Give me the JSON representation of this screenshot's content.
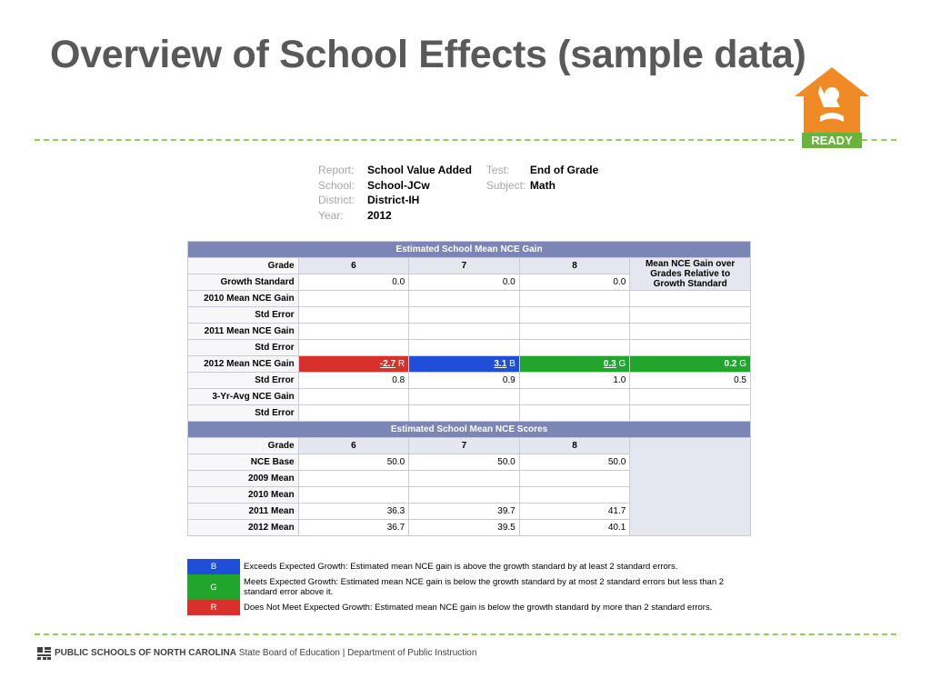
{
  "slide": {
    "title": "Overview of School Effects (sample data)",
    "logo_text": "READY"
  },
  "meta": {
    "report_label": "Report:",
    "report": "School Value Added",
    "test_label": "Test:",
    "test": "End of Grade",
    "school_label": "School:",
    "school": "School-JCw",
    "subject_label": "Subject:",
    "subject": "Math",
    "district_label": "District:",
    "district": "District-IH",
    "year_label": "Year:",
    "year": "2012"
  },
  "gain_table": {
    "section_title": "Estimated School Mean NCE Gain",
    "grade_label": "Grade",
    "grades": [
      "6",
      "7",
      "8"
    ],
    "summary_header": "Mean NCE Gain over Grades Relative to Growth Standard",
    "rows": [
      {
        "label": "Growth Standard",
        "values": [
          "0.0",
          "0.0",
          "0.0"
        ],
        "summary": ""
      },
      {
        "label": "2010 Mean NCE Gain",
        "values": [
          "",
          "",
          ""
        ],
        "summary": ""
      },
      {
        "label": "Std Error",
        "values": [
          "",
          "",
          ""
        ],
        "summary": ""
      },
      {
        "label": "2011 Mean NCE Gain",
        "values": [
          "",
          "",
          ""
        ],
        "summary": ""
      },
      {
        "label": "Std Error",
        "values": [
          "",
          "",
          ""
        ],
        "summary": ""
      },
      {
        "label": "2012 Mean NCE Gain",
        "values": [
          "-2.7",
          "3.1",
          "0.3"
        ],
        "codes": [
          "R",
          "B",
          "G"
        ],
        "summary": "0.2",
        "summary_code": "G"
      },
      {
        "label": "Std Error",
        "values": [
          "0.8",
          "0.9",
          "1.0"
        ],
        "summary": "0.5"
      },
      {
        "label": "3-Yr-Avg NCE Gain",
        "values": [
          "",
          "",
          ""
        ],
        "summary": ""
      },
      {
        "label": "Std Error",
        "values": [
          "",
          "",
          ""
        ],
        "summary": ""
      }
    ]
  },
  "score_table": {
    "section_title": "Estimated School Mean NCE Scores",
    "grade_label": "Grade",
    "grades": [
      "6",
      "7",
      "8"
    ],
    "rows": [
      {
        "label": "NCE Base",
        "values": [
          "50.0",
          "50.0",
          "50.0"
        ]
      },
      {
        "label": "2009 Mean",
        "values": [
          "",
          "",
          ""
        ]
      },
      {
        "label": "2010 Mean",
        "values": [
          "",
          "",
          ""
        ]
      },
      {
        "label": "2011 Mean",
        "values": [
          "36.3",
          "39.7",
          "41.7"
        ]
      },
      {
        "label": "2012 Mean",
        "values": [
          "36.7",
          "39.5",
          "40.1"
        ]
      }
    ]
  },
  "legend": [
    {
      "code": "B",
      "color": "#1e4fd6",
      "text": "Exceeds Expected Growth: Estimated mean NCE gain is above the growth standard by at least 2 standard errors."
    },
    {
      "code": "G",
      "color": "#22a52d",
      "text": "Meets Expected Growth: Estimated mean NCE gain is below the growth standard by at most 2 standard errors but less than 2 standard error above it."
    },
    {
      "code": "R",
      "color": "#d8312c",
      "text": "Does Not Meet Expected Growth: Estimated mean NCE gain is below the growth standard by more than 2 standard errors."
    }
  ],
  "footer": {
    "org": "PUBLIC SCHOOLS OF NORTH CAROLINA",
    "rest": " State Board of Education | Department of Public Instruction"
  },
  "colors": {
    "accent_green": "#92d050",
    "header_blue": "#7b86b6",
    "logo_orange": "#f08a24"
  }
}
